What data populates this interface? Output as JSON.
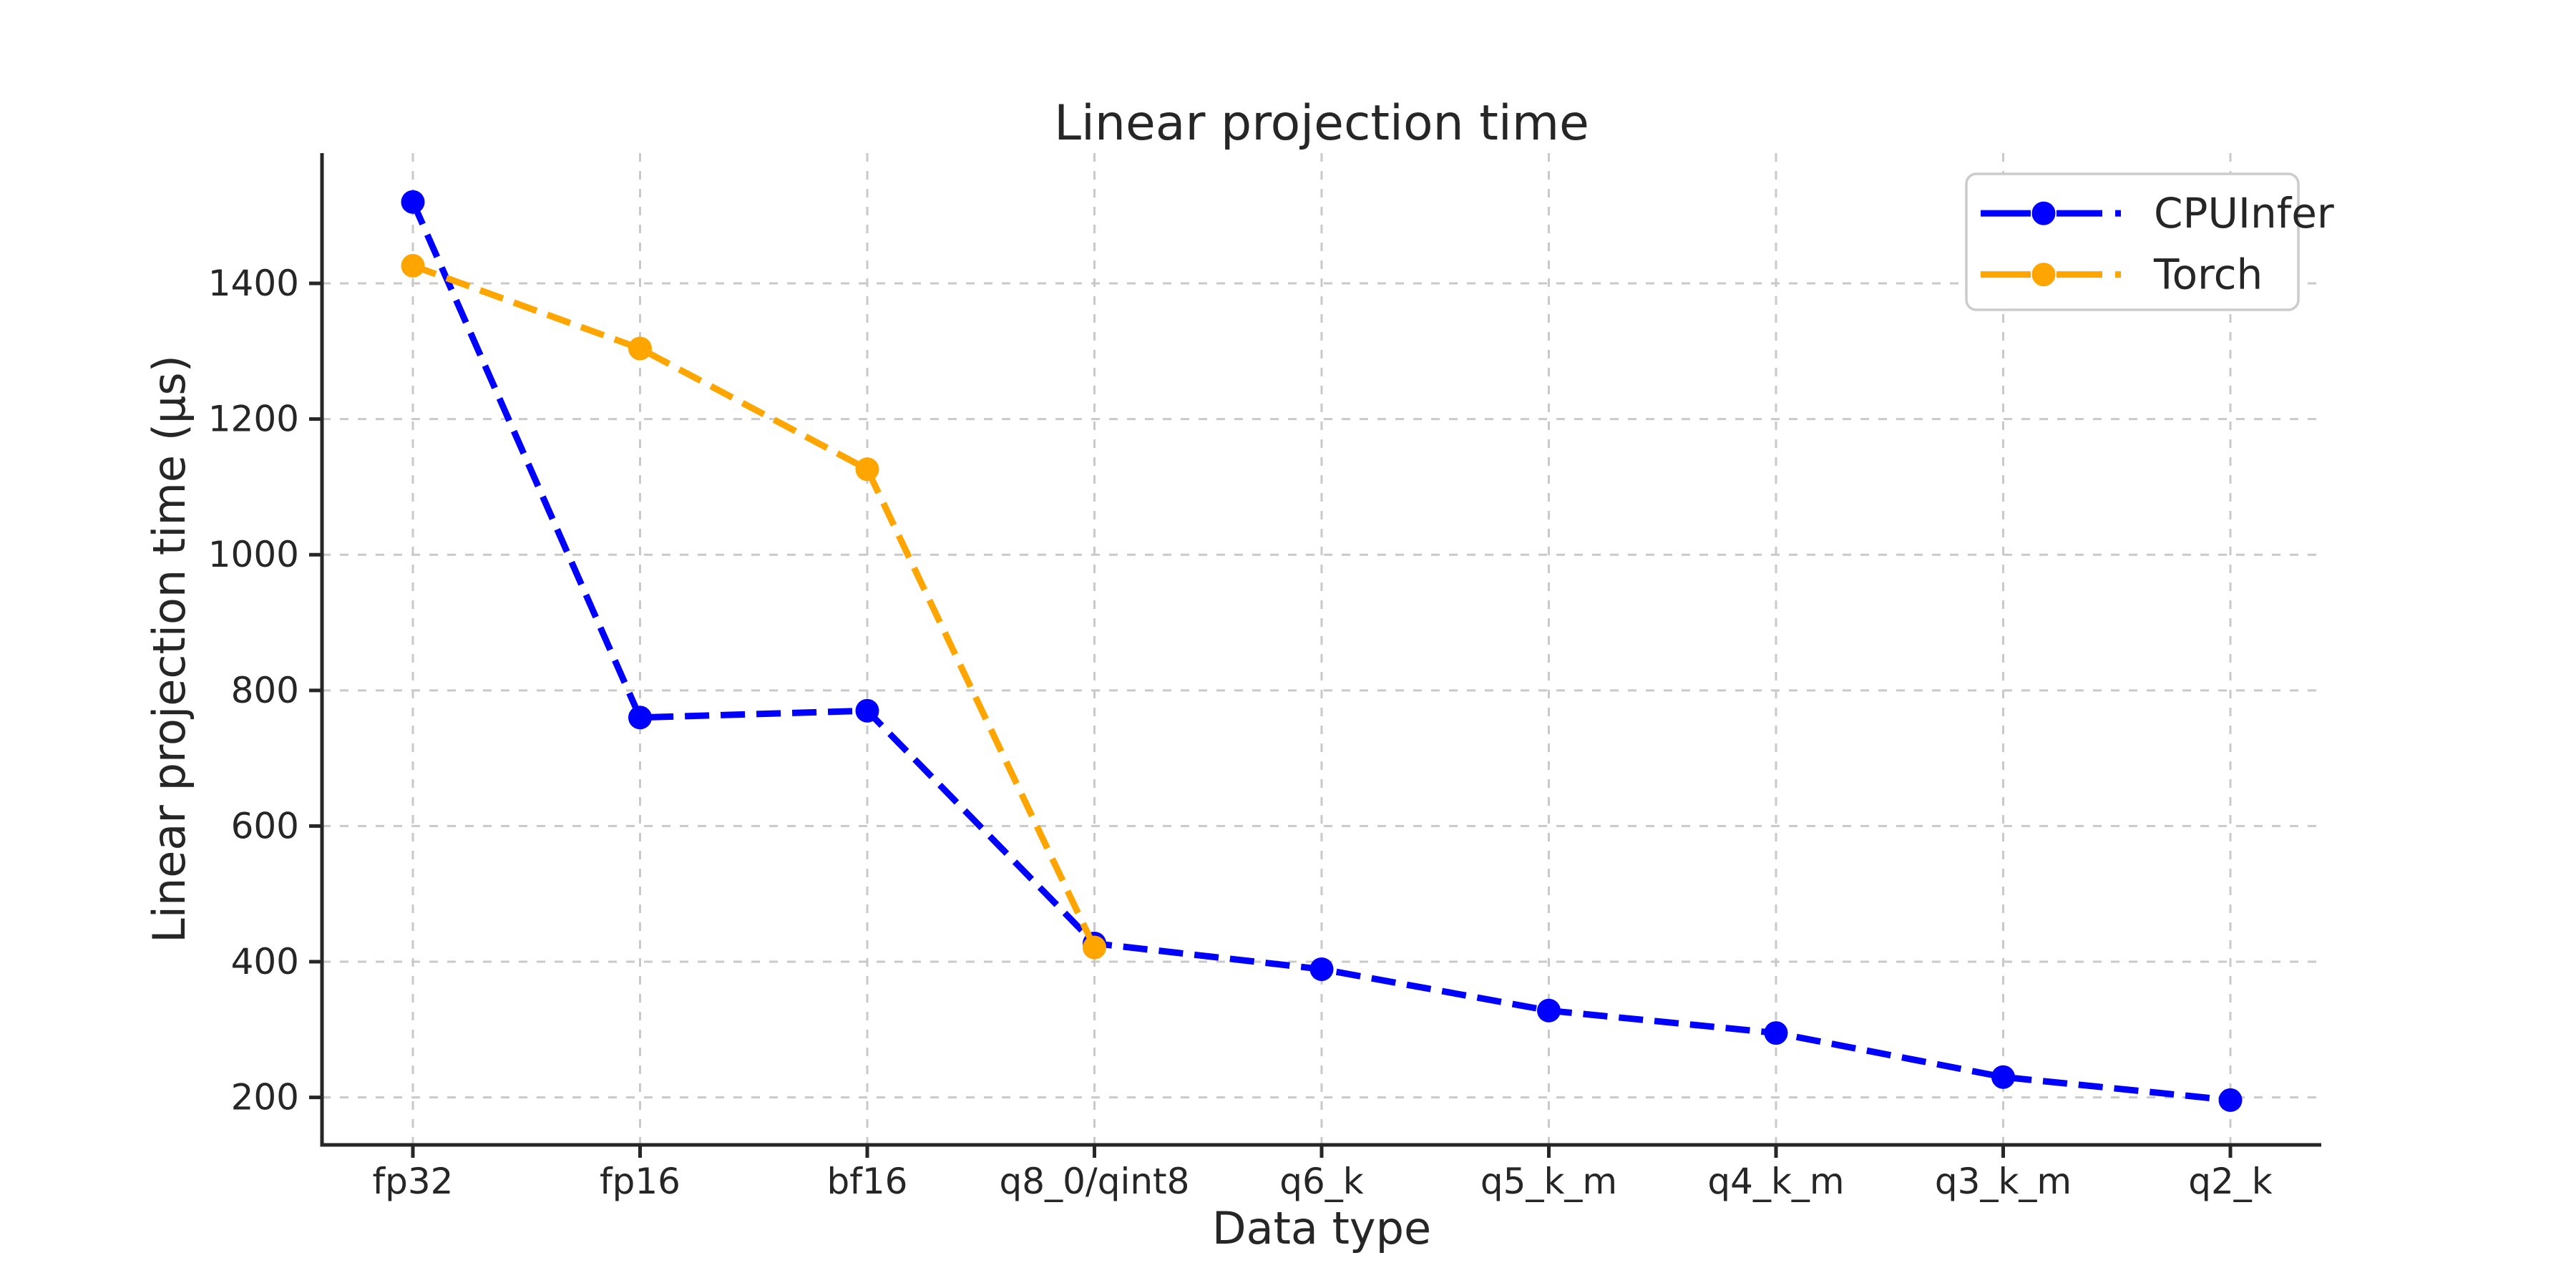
{
  "figure": {
    "background": "#ffffff"
  },
  "chart_data": {
    "type": "line",
    "title": "Linear projection time",
    "xlabel": "Data type",
    "ylabel": "Linear projection time (μs)",
    "categories": [
      "fp32",
      "fp16",
      "bf16",
      "q8_0/qint8",
      "q6_k",
      "q5_k_m",
      "q4_k_m",
      "q3_k_m",
      "q2_k"
    ],
    "series": [
      {
        "name": "CPUInfer",
        "color": "#0000ff",
        "linestyle": "dashed",
        "marker": "circle",
        "values": [
          1520,
          760,
          770,
          427,
          389,
          328,
          295,
          230,
          196
        ]
      },
      {
        "name": "Torch",
        "color": "#ffa500",
        "linestyle": "dashed",
        "marker": "circle",
        "values": [
          1426,
          1304,
          1126,
          421
        ]
      }
    ],
    "yticks": [
      200,
      400,
      600,
      800,
      1000,
      1200,
      1400
    ],
    "ylim": [
      130,
      1592
    ],
    "grid": true,
    "grid_style": "dashed",
    "legend_position": "upper right",
    "colors": {
      "grid": "#c9c9c9",
      "spine": "#262626",
      "text": "#262626",
      "legend_border": "#cccccc",
      "legend_background": "#ffffff"
    }
  }
}
